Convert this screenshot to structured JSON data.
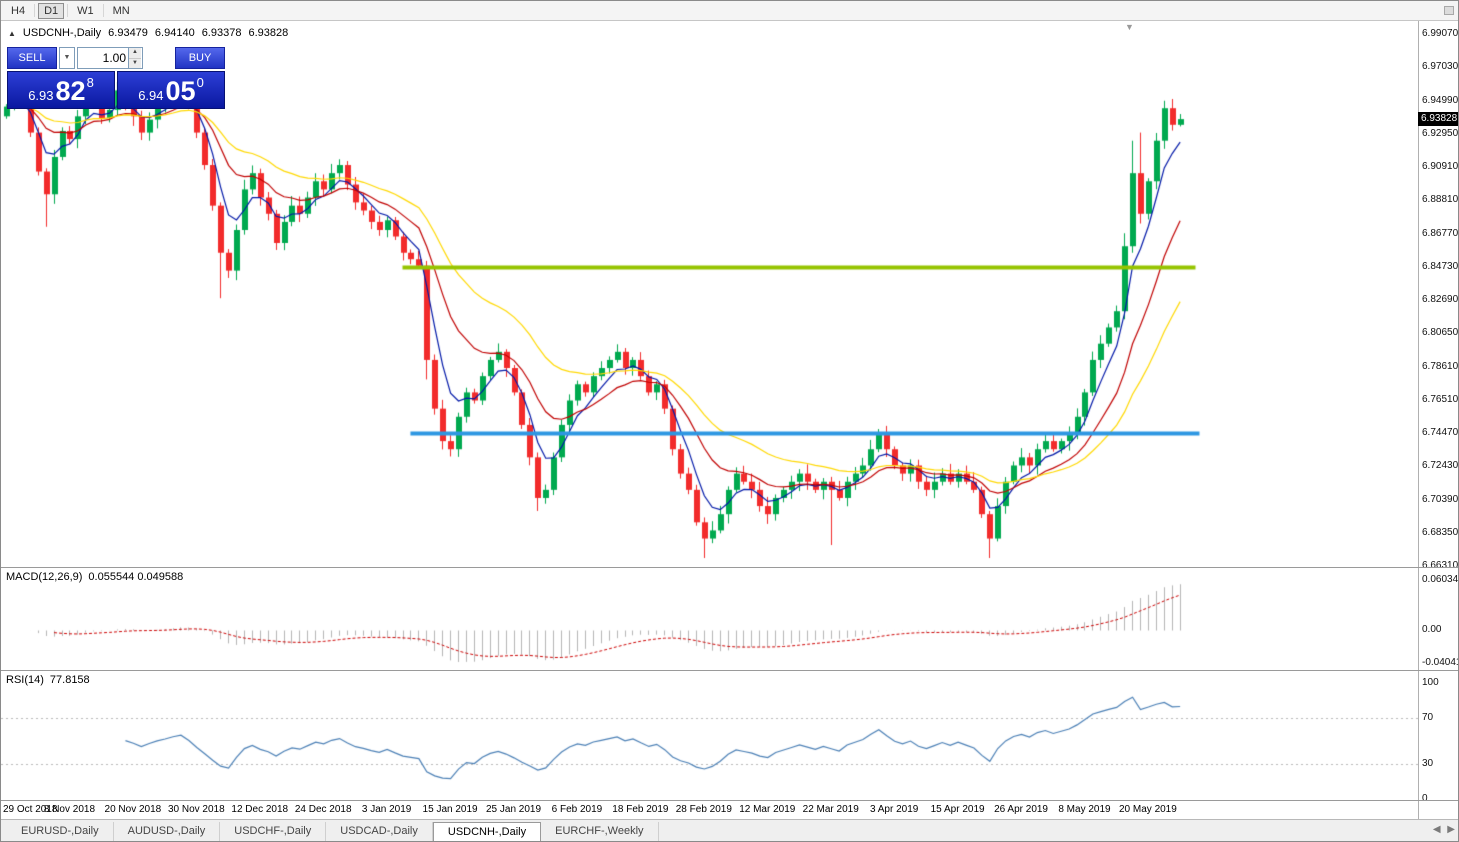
{
  "toolbar": {
    "timeframes": [
      "H4",
      "D1",
      "W1",
      "MN"
    ],
    "active_timeframe": "D1"
  },
  "chart_header": {
    "collapse_icon": "▲",
    "symbol": "USDCNH-,Daily",
    "open": "6.93479",
    "high": "6.94140",
    "low": "6.93378",
    "close": "6.93828"
  },
  "trade_panel": {
    "sell_label": "SELL",
    "buy_label": "BUY",
    "volume": "1.00",
    "sell_price": {
      "prefix": "6.93",
      "big": "82",
      "sup": "8"
    },
    "buy_price": {
      "prefix": "6.94",
      "big": "05",
      "sup": "0"
    }
  },
  "price_scale": {
    "ticks": [
      "6.99070",
      "6.97030",
      "6.94990",
      "6.92950",
      "6.90910",
      "6.88810",
      "6.86770",
      "6.84730",
      "6.82690",
      "6.80650",
      "6.78610",
      "6.76510",
      "6.74470",
      "6.72430",
      "6.70390",
      "6.68350",
      "6.66310"
    ],
    "current_price": "6.93828"
  },
  "macd_panel": {
    "label": "MACD(12,26,9)",
    "values": "0.055544 0.049588",
    "scale": [
      "0.060342",
      "0.00",
      "-0.040415"
    ]
  },
  "rsi_panel": {
    "label": "RSI(14)",
    "value": "77.8158",
    "scale": [
      "100",
      "70",
      "30",
      "0"
    ]
  },
  "date_axis": {
    "labels": [
      {
        "text": "29 Oct 2018",
        "idx": 0
      },
      {
        "text": "8 Nov 2018",
        "idx": 8
      },
      {
        "text": "20 Nov 2018",
        "idx": 16
      },
      {
        "text": "30 Nov 2018",
        "idx": 24
      },
      {
        "text": "12 Dec 2018",
        "idx": 32
      },
      {
        "text": "24 Dec 2018",
        "idx": 40
      },
      {
        "text": "3 Jan 2019",
        "idx": 48
      },
      {
        "text": "15 Jan 2019",
        "idx": 56
      },
      {
        "text": "25 Jan 2019",
        "idx": 64
      },
      {
        "text": "6 Feb 2019",
        "idx": 72
      },
      {
        "text": "18 Feb 2019",
        "idx": 80
      },
      {
        "text": "28 Feb 2019",
        "idx": 88
      },
      {
        "text": "12 Mar 2019",
        "idx": 96
      },
      {
        "text": "22 Mar 2019",
        "idx": 104
      },
      {
        "text": "3 Apr 2019",
        "idx": 112
      },
      {
        "text": "15 Apr 2019",
        "idx": 120
      },
      {
        "text": "26 Apr 2019",
        "idx": 128
      },
      {
        "text": "8 May 2019",
        "idx": 136
      },
      {
        "text": "20 May 2019",
        "idx": 144
      }
    ]
  },
  "tab_bar": {
    "tabs": [
      "EURUSD-,Daily",
      "AUDUSD-,Daily",
      "USDCHF-,Daily",
      "USDCAD-,Daily",
      "USDCNH-,Daily",
      "EURCHF-,Weekly"
    ],
    "active_index": 4,
    "left_arrow": "◀",
    "right_arrow": "▶"
  },
  "chart_data": {
    "type": "candlestick",
    "symbol": "USDCNH",
    "timeframe": "Daily",
    "date_start": "29 Oct 2018",
    "date_end": "24 May 2019",
    "price_min": 6.6631,
    "price_max": 6.9907,
    "open_rule": "previous_close",
    "closes": [
      6.946,
      6.956,
      6.948,
      6.93,
      6.906,
      6.892,
      6.915,
      6.931,
      6.926,
      6.94,
      6.956,
      6.95,
      6.939,
      6.944,
      6.956,
      6.948,
      6.94,
      6.93,
      6.938,
      6.945,
      6.95,
      6.956,
      6.96,
      6.948,
      6.93,
      6.91,
      6.885,
      6.856,
      6.845,
      6.87,
      6.895,
      6.905,
      6.89,
      6.88,
      6.862,
      6.875,
      6.885,
      6.88,
      6.89,
      6.9,
      6.895,
      6.905,
      6.91,
      6.898,
      6.887,
      6.882,
      6.875,
      6.87,
      6.876,
      6.866,
      6.856,
      6.852,
      6.848,
      6.79,
      6.76,
      6.74,
      6.735,
      6.755,
      6.77,
      6.765,
      6.78,
      6.79,
      6.795,
      6.785,
      6.77,
      6.75,
      6.73,
      6.705,
      6.71,
      6.73,
      6.75,
      6.765,
      6.775,
      6.77,
      6.78,
      6.785,
      6.79,
      6.795,
      6.785,
      6.79,
      6.78,
      6.77,
      6.775,
      6.76,
      6.735,
      6.72,
      6.71,
      6.69,
      6.68,
      6.685,
      6.695,
      6.71,
      6.72,
      6.715,
      6.71,
      6.7,
      6.695,
      6.705,
      6.71,
      6.715,
      6.72,
      6.715,
      6.71,
      6.715,
      6.71,
      6.705,
      6.715,
      6.72,
      6.725,
      6.735,
      6.745,
      6.735,
      6.725,
      6.72,
      6.725,
      6.715,
      6.71,
      6.715,
      6.72,
      6.715,
      6.72,
      6.715,
      6.71,
      6.695,
      6.68,
      6.7,
      6.715,
      6.725,
      6.73,
      6.725,
      6.735,
      6.74,
      6.735,
      6.74,
      6.745,
      6.755,
      6.77,
      6.79,
      6.8,
      6.81,
      6.82,
      6.86,
      6.905,
      6.88,
      6.9,
      6.925,
      6.945,
      6.93479,
      6.93828
    ],
    "candle_overrides": {
      "5": [
        6.906,
        6.908,
        6.872,
        6.892
      ],
      "27": [
        6.885,
        6.887,
        6.828,
        6.856
      ],
      "53": [
        6.848,
        6.851,
        6.778,
        6.79
      ],
      "67": [
        6.73,
        6.733,
        6.697,
        6.705
      ],
      "88": [
        6.69,
        6.693,
        6.668,
        6.68
      ],
      "104": [
        6.715,
        6.718,
        6.676,
        6.71
      ],
      "124": [
        6.695,
        6.697,
        6.668,
        6.68
      ],
      "141": [
        6.82,
        6.868,
        6.815,
        6.86
      ],
      "142": [
        6.86,
        6.925,
        6.856,
        6.905
      ],
      "143": [
        6.905,
        6.93,
        6.874,
        6.88
      ],
      "146": [
        6.925,
        6.9496,
        6.92,
        6.945
      ],
      "148": [
        6.93479,
        6.9414,
        6.93378,
        6.93828
      ]
    },
    "moving_averages": [
      {
        "type": "ema",
        "period": 5,
        "color": "#0018a8"
      },
      {
        "type": "ema",
        "period": 13,
        "color": "#c00000"
      },
      {
        "type": "ema",
        "period": 26,
        "color": "#ffd800"
      }
    ],
    "hlines": [
      {
        "price": 6.8473,
        "color": "#96c400",
        "from_idx": 50,
        "to_idx": 150,
        "width": 4
      },
      {
        "price": 6.7447,
        "color": "#2e97e2",
        "from_idx": 51,
        "to_idx": 150.5,
        "width": 4
      }
    ],
    "colors": {
      "up": "#00a94f",
      "down": "#f22b2b",
      "macd_hist": "#b4b4b4",
      "macd_signal": "#cc0000",
      "rsi": "#4a7fb5",
      "level_dotted": "#b8b8b8"
    },
    "indicators": {
      "macd": {
        "fast": 12,
        "slow": 26,
        "signal": 9,
        "main_value": 0.055544,
        "signal_value": 0.049588
      },
      "rsi": {
        "period": 14,
        "value": 77.8158,
        "levels": [
          70,
          30
        ]
      }
    }
  }
}
